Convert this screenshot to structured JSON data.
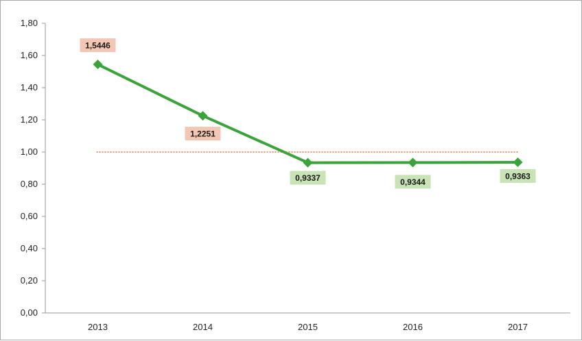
{
  "chart_data": {
    "type": "line",
    "title": "",
    "xlabel": "",
    "ylabel": "",
    "categories": [
      "2013",
      "2014",
      "2015",
      "2016",
      "2017"
    ],
    "series": [
      {
        "values": [
          1.5446,
          1.2251,
          0.9337,
          0.9344,
          0.9363
        ],
        "value_labels": [
          "1,5446",
          "1,2251",
          "0,9337",
          "0,9344",
          "0,9363"
        ],
        "label_colors": [
          "#f4c7b4",
          "#f4c7b4",
          "#c8e3b5",
          "#c8e3b5",
          "#c8e3b5"
        ],
        "color": "#3aa33a",
        "marker": "diamond"
      }
    ],
    "reference_line": {
      "value": 1.0,
      "style": "dotted",
      "color": "#e0703a"
    },
    "ylim": [
      0,
      1.8
    ],
    "yticks": [
      0,
      0.2,
      0.4,
      0.6,
      0.8,
      1.0,
      1.2,
      1.4,
      1.6,
      1.8
    ],
    "ytick_labels": [
      "0,00",
      "0,20",
      "0,40",
      "0,60",
      "0,80",
      "1,00",
      "1,20",
      "1,40",
      "1,60",
      "1,80"
    ],
    "grid": false,
    "legend": "none"
  }
}
